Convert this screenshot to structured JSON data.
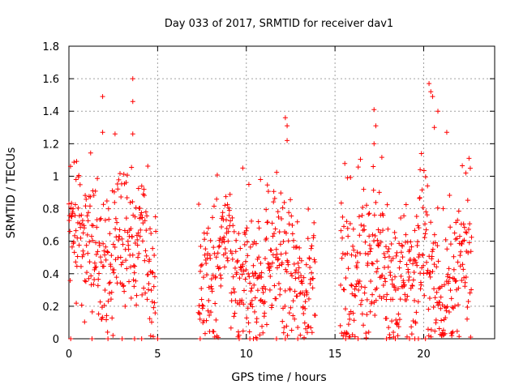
{
  "chart_data": {
    "type": "scatter",
    "title": "Day 033 of 2017, SRMTID for receiver dav1",
    "xlabel": "GPS time / hours",
    "ylabel": "SRMTID / TECUs",
    "xlim": [
      0,
      24
    ],
    "ylim": [
      0,
      1.8
    ],
    "xticks": [
      0,
      5,
      10,
      15,
      20
    ],
    "yticks": [
      0,
      0.2,
      0.4,
      0.6,
      0.8,
      1,
      1.2,
      1.4,
      1.6,
      1.8
    ],
    "xtick_labels": [
      "0",
      "5",
      "10",
      "15",
      "20"
    ],
    "ytick_labels": [
      "0",
      "0.2",
      "0.4",
      "0.6",
      "0.8",
      "1",
      "1.2",
      "1.4",
      "1.6",
      "1.8"
    ],
    "grid": true,
    "marker": "plus",
    "color": "#ff0000",
    "series": [
      {
        "name": "SRMTID",
        "segments": [
          {
            "start": 0.0,
            "end": 4.9,
            "base": 0.55,
            "spread": 0.22
          },
          {
            "start": 7.3,
            "end": 13.9,
            "base": 0.42,
            "spread": 0.22
          },
          {
            "start": 15.3,
            "end": 22.7,
            "base": 0.4,
            "spread": 0.22
          }
        ],
        "peaks": [
          {
            "x": 1.9,
            "y": 1.49
          },
          {
            "x": 3.6,
            "y": 1.6
          },
          {
            "x": 3.6,
            "y": 1.46
          },
          {
            "x": 3.6,
            "y": 1.26
          },
          {
            "x": 1.9,
            "y": 1.27
          },
          {
            "x": 2.6,
            "y": 1.26
          },
          {
            "x": 12.2,
            "y": 1.36
          },
          {
            "x": 12.3,
            "y": 1.31
          },
          {
            "x": 12.3,
            "y": 1.22
          },
          {
            "x": 17.2,
            "y": 1.41
          },
          {
            "x": 17.3,
            "y": 1.31
          },
          {
            "x": 17.2,
            "y": 1.2
          },
          {
            "x": 20.3,
            "y": 1.57
          },
          {
            "x": 20.4,
            "y": 1.52
          },
          {
            "x": 20.5,
            "y": 1.49
          },
          {
            "x": 20.8,
            "y": 1.4
          },
          {
            "x": 20.6,
            "y": 1.3
          },
          {
            "x": 21.3,
            "y": 1.27
          },
          {
            "x": 9.8,
            "y": 1.05
          },
          {
            "x": 10.8,
            "y": 0.98
          },
          {
            "x": 0.4,
            "y": 0.98
          },
          {
            "x": 19.8,
            "y": 1.04
          },
          {
            "x": 15.7,
            "y": 0.99
          }
        ],
        "zeros": [
          0.1,
          1.3,
          2.2,
          3.0,
          3.7,
          4.1,
          5.0,
          7.4,
          9.6,
          10.2,
          10.4,
          10.6,
          11.7,
          12.2,
          12.9,
          15.6,
          16.3,
          17.9,
          18.4,
          19.2,
          19.5,
          19.7,
          20.1
        ]
      }
    ]
  }
}
